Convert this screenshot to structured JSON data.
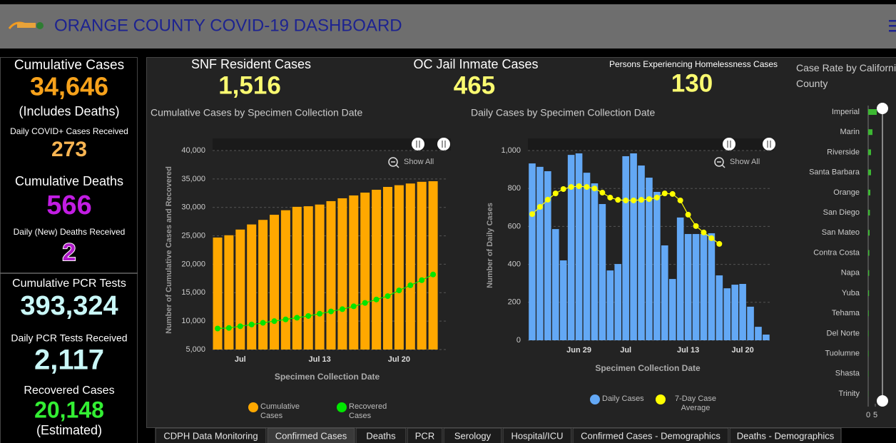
{
  "header": {
    "title": "ORANGE COUNTY COVID-19 DASHBOARD"
  },
  "left_panel": [
    {
      "label": "Cumulative Cases",
      "value": "34,646",
      "note": "(Includes Deaths)",
      "color": "#f7a21b"
    },
    {
      "label": "Daily COVID+ Cases Received",
      "value": "273",
      "color": "#f9b552"
    },
    {
      "label": "Cumulative Deaths",
      "value": "566",
      "color": "#c21de3"
    },
    {
      "label": "Daily (New) Deaths Received",
      "value": "2",
      "color": "#b01ac8"
    },
    {
      "label": "Cumulative PCR Tests",
      "value": "393,324",
      "color": "#c9f7f7"
    },
    {
      "label": "Daily PCR Tests Received",
      "value": "2,117",
      "color": "#c9f7f7"
    },
    {
      "label": "Recovered Cases",
      "value": "20,148",
      "note": "(Estimated)",
      "color": "#33ee33"
    }
  ],
  "top_stats": [
    {
      "label": "SNF Resident Cases",
      "value": "1,516",
      "color": "#fbfb70"
    },
    {
      "label": "OC Jail Inmate Cases",
      "value": "465",
      "color": "#fbfb70"
    },
    {
      "label": "Persons Experiencing Homelessness Cases",
      "value": "130",
      "color": "#fbfb70"
    }
  ],
  "chart_data": [
    {
      "type": "bar",
      "title": "Cumulative Cases by Specimen Collection Date",
      "x_label": "Specimen Collection Date",
      "y_label": "Number of Cumulative Cases and Recovered",
      "show_all": "Show All",
      "categories": [
        null,
        null,
        "Jul",
        null,
        null,
        null,
        null,
        null,
        null,
        "Jul 13",
        null,
        null,
        null,
        null,
        null,
        null,
        "Jul 20",
        null,
        null,
        null
      ],
      "series": [
        {
          "name": "Cumulative Cases",
          "type": "bar",
          "color": "#ffa800",
          "values": [
            24700,
            25100,
            26100,
            27000,
            27800,
            28700,
            29500,
            30100,
            30200,
            30500,
            31100,
            31600,
            32100,
            32600,
            33100,
            33600,
            33900,
            34200,
            34500,
            34600
          ]
        },
        {
          "name": "Recovered Cases",
          "type": "line",
          "color": "#00e600",
          "values": [
            8700,
            8800,
            9100,
            9400,
            9700,
            10000,
            10300,
            10600,
            10900,
            11300,
            11700,
            12100,
            12600,
            13200,
            13800,
            14400,
            15400,
            16300,
            17200,
            18200
          ]
        }
      ],
      "ylim": [
        5000,
        40000
      ],
      "yticks": [
        {
          "value": 5000,
          "label": "5,000"
        },
        {
          "value": 10000,
          "label": "10,000"
        },
        {
          "value": 15000,
          "label": "15,000"
        },
        {
          "value": 20000,
          "label": "20,000"
        },
        {
          "value": 25000,
          "label": "25,000"
        },
        {
          "value": 30000,
          "label": "30,000"
        },
        {
          "value": 35000,
          "label": "35,000"
        },
        {
          "value": 40000,
          "label": "40,000"
        }
      ],
      "grid": true
    },
    {
      "type": "bar",
      "title": "Daily Cases by Specimen Collection Date",
      "x_label": "Specimen Collection Date",
      "y_label": "Number of Daily Cases",
      "show_all": "Show All",
      "categories": [
        null,
        null,
        null,
        null,
        null,
        null,
        "Jun 29",
        null,
        null,
        null,
        null,
        null,
        "Jul",
        null,
        null,
        null,
        null,
        null,
        null,
        null,
        "Jul 13",
        null,
        null,
        null,
        null,
        null,
        null,
        "Jul 20",
        null,
        null,
        null
      ],
      "series": [
        {
          "name": "Daily Cases",
          "type": "bar",
          "color": "#63a8f5",
          "values": [
            932,
            914,
            891,
            586,
            421,
            977,
            985,
            883,
            827,
            718,
            368,
            402,
            970,
            985,
            921,
            857,
            782,
            500,
            323,
            647,
            560,
            560,
            560,
            564,
            342,
            274,
            293,
            297,
            177,
            71,
            30
          ]
        },
        {
          "name": "7-Day Case Average",
          "type": "line",
          "color": "#ffff00",
          "values": [
            665,
            703,
            741,
            774,
            797,
            808,
            812,
            808,
            800,
            778,
            752,
            740,
            737,
            737,
            740,
            744,
            752,
            774,
            771,
            737,
            662,
            602,
            568,
            538,
            508,
            null,
            null,
            null,
            null,
            null,
            null
          ]
        }
      ],
      "ylim": [
        0,
        1000
      ],
      "yticks": [
        0,
        200,
        400,
        600,
        800,
        {
          "value": 1000,
          "label": "1,000"
        }
      ],
      "grid": true
    },
    {
      "type": "hbar",
      "title": "Case Rate by California County",
      "categories": [
        "Imperial",
        "Marin",
        "Riverside",
        "Santa Barbara",
        "Orange",
        "San Diego",
        "San Mateo",
        "Contra Costa",
        "Napa",
        "Yuba",
        "Tehama",
        "Del Norte",
        "Tuolumne",
        "Shasta",
        "Trinity"
      ],
      "values": [
        6,
        3,
        2,
        2,
        1.5,
        1.2,
        1,
        0.8,
        0.7,
        0.6,
        0.4,
        0.3,
        0.3,
        0.2,
        0.1
      ],
      "color": "#3cb832",
      "xlim": [
        0,
        10
      ],
      "xticks": [
        0,
        5
      ]
    }
  ],
  "tabs": [
    "CDPH Data Monitoring",
    "Confirmed Cases",
    "Deaths",
    "PCR",
    "Serology",
    "Hospital/ICU",
    "Confirmed Cases - Demographics",
    "Deaths - Demographics"
  ],
  "active_tab": 1
}
